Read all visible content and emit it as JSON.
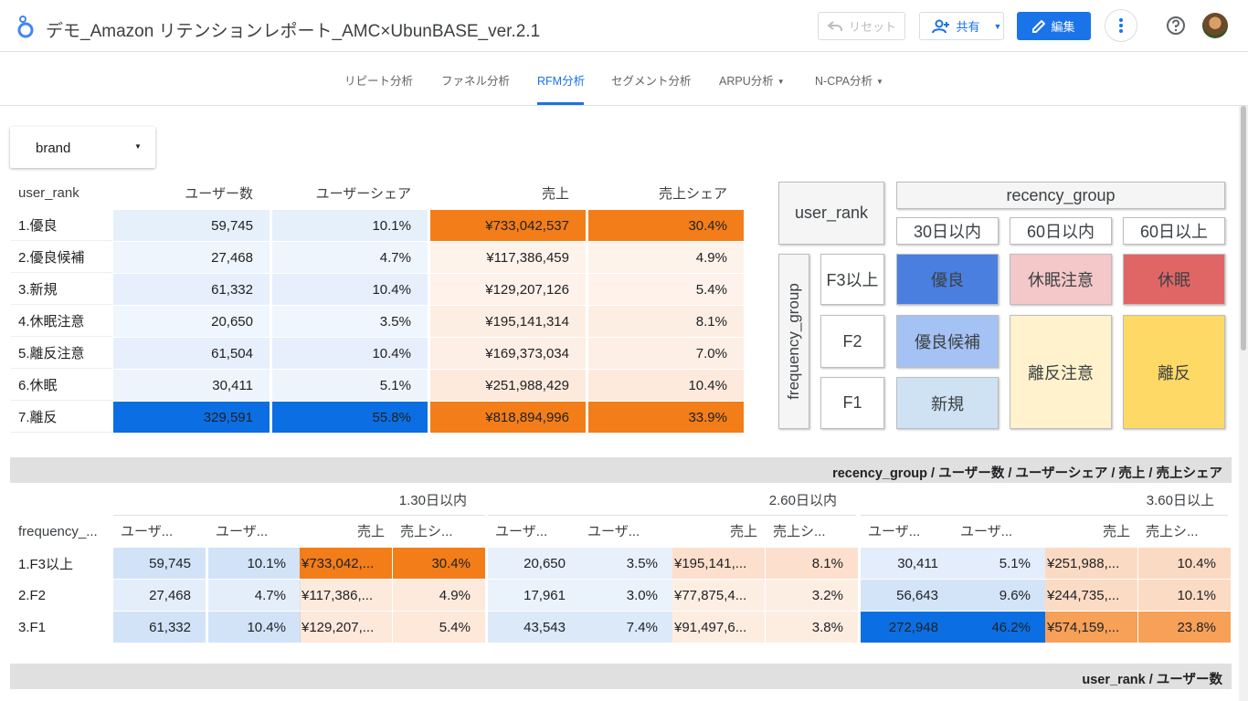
{
  "header": {
    "title": "デモ_Amazon リテンションレポート_AMC×UbunBASE_ver.2.1",
    "reset_label": "リセット",
    "share_label": "共有",
    "edit_label": "編集"
  },
  "nav": {
    "tabs": [
      "リピート分析",
      "ファネル分析",
      "RFM分析",
      "セグメント分析",
      "ARPU分析",
      "N-CPA分析"
    ],
    "active": "RFM分析"
  },
  "filter": {
    "brand_label": "brand"
  },
  "table1": {
    "headers": [
      "user_rank",
      "ユーザー数",
      "ユーザーシェア",
      "売上",
      "売上シェア"
    ],
    "rows": [
      {
        "rank": "1.優良",
        "users": "59,745",
        "user_share": "10.1%",
        "sales": "¥733,042,537",
        "sales_share": "30.4%"
      },
      {
        "rank": "2.優良候補",
        "users": "27,468",
        "user_share": "4.7%",
        "sales": "¥117,386,459",
        "sales_share": "4.9%"
      },
      {
        "rank": "3.新規",
        "users": "61,332",
        "user_share": "10.4%",
        "sales": "¥129,207,126",
        "sales_share": "5.4%"
      },
      {
        "rank": "4.休眠注意",
        "users": "20,650",
        "user_share": "3.5%",
        "sales": "¥195,141,314",
        "sales_share": "8.1%"
      },
      {
        "rank": "5.離反注意",
        "users": "61,504",
        "user_share": "10.4%",
        "sales": "¥169,373,034",
        "sales_share": "7.0%"
      },
      {
        "rank": "6.休眠",
        "users": "30,411",
        "user_share": "5.1%",
        "sales": "¥251,988,429",
        "sales_share": "10.4%"
      },
      {
        "rank": "7.離反",
        "users": "329,591",
        "user_share": "55.8%",
        "sales": "¥818,894,996",
        "sales_share": "33.9%"
      }
    ]
  },
  "matrix": {
    "corner": "user_rank",
    "recency_title": "recency_group",
    "recency": [
      "30日以内",
      "60日以内",
      "60日以上"
    ],
    "frequency_title": "frequency_group",
    "frequency": [
      "F3以上",
      "F2",
      "F1"
    ],
    "segments": {
      "best": "優良",
      "dormant_watch": "休眠注意",
      "dormant": "休眠",
      "best_candidate": "優良候補",
      "churn_watch": "離反注意",
      "churn": "離反",
      "new": "新規"
    },
    "colors": {
      "best": "#4a7fe0",
      "dormant_watch": "#f4c7c8",
      "dormant": "#e06666",
      "best_candidate": "#a4c2f4",
      "churn_watch": "#fff2cc",
      "churn": "#ffd966",
      "new": "#cfe2f3"
    }
  },
  "section2": {
    "title": "recency_group / ユーザー数 / ユーザーシェア / 売上 / 売上シェア",
    "row_header": "frequency_...",
    "groups": [
      "1.30日以内",
      "2.60日以内",
      "3.60日以上"
    ],
    "col_headers": [
      "ユーザ...",
      "ユーザ...",
      "売上",
      "売上シ..."
    ],
    "rows": [
      {
        "freq": "1.F3以上",
        "cells": [
          "59,745",
          "10.1%",
          "¥733,042,...",
          "30.4%",
          "20,650",
          "3.5%",
          "¥195,141,...",
          "8.1%",
          "30,411",
          "5.1%",
          "¥251,988,...",
          "10.4%"
        ]
      },
      {
        "freq": "2.F2",
        "cells": [
          "27,468",
          "4.7%",
          "¥117,386,...",
          "4.9%",
          "17,961",
          "3.0%",
          "¥77,875,4...",
          "3.2%",
          "56,643",
          "9.6%",
          "¥244,735,...",
          "10.1%"
        ]
      },
      {
        "freq": "3.F1",
        "cells": [
          "61,332",
          "10.4%",
          "¥129,207,...",
          "5.4%",
          "43,543",
          "7.4%",
          "¥91,497,6...",
          "3.8%",
          "272,948",
          "46.2%",
          "¥574,159,...",
          "23.8%"
        ]
      }
    ]
  },
  "section3": {
    "title": "user_rank / ユーザー数"
  }
}
